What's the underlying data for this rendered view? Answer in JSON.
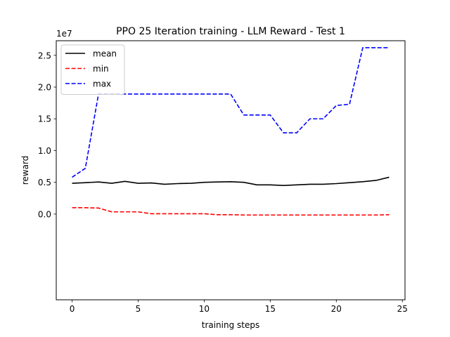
{
  "chart_data": {
    "type": "line",
    "title": "PPO 25 Iteration training - LLM Reward - Test 1",
    "xlabel": "training steps",
    "ylabel": "reward",
    "y_offset_label": "1e7",
    "xlim": [
      -1.2,
      25.2
    ],
    "ylim": [
      -1.35,
      2.73
    ],
    "y_unit_scale": 10000000,
    "xticks": [
      0,
      5,
      10,
      15,
      20,
      25
    ],
    "yticks": [
      0.0,
      0.5,
      1.0,
      1.5,
      2.0,
      2.5
    ],
    "ytick_labels": [
      "0.0",
      "0.5",
      "1.0",
      "1.5",
      "2.0",
      "2.5"
    ],
    "grid": false,
    "legend_position": "top-left",
    "x": [
      0,
      1,
      2,
      3,
      4,
      5,
      6,
      7,
      8,
      9,
      10,
      11,
      12,
      13,
      14,
      15,
      16,
      17,
      18,
      19,
      20,
      21,
      22,
      23,
      24
    ],
    "series": [
      {
        "name": "mean",
        "color": "#000000",
        "dash": "solid",
        "values": [
          0.485,
          0.495,
          0.505,
          0.485,
          0.515,
          0.485,
          0.49,
          0.47,
          0.48,
          0.485,
          0.5,
          0.505,
          0.51,
          0.5,
          0.46,
          0.46,
          0.45,
          0.46,
          0.47,
          0.47,
          0.48,
          0.495,
          0.51,
          0.53,
          0.58
        ]
      },
      {
        "name": "min",
        "color": "#ff0000",
        "dash": "dashed",
        "values": [
          0.1,
          0.1,
          0.095,
          0.035,
          0.035,
          0.035,
          0.005,
          0.005,
          0.005,
          0.005,
          0.005,
          -0.01,
          -0.01,
          -0.015,
          -0.015,
          -0.015,
          -0.015,
          -0.015,
          -0.015,
          -0.015,
          -0.015,
          -0.015,
          -0.015,
          -0.015,
          -0.01
        ]
      },
      {
        "name": "max",
        "color": "#0000ff",
        "dash": "dashed",
        "values": [
          0.58,
          0.72,
          1.89,
          1.89,
          1.89,
          1.89,
          1.89,
          1.89,
          1.89,
          1.89,
          1.89,
          1.89,
          1.89,
          1.56,
          1.56,
          1.56,
          1.28,
          1.28,
          1.5,
          1.5,
          1.71,
          1.73,
          2.62,
          2.62,
          2.62
        ]
      }
    ]
  }
}
